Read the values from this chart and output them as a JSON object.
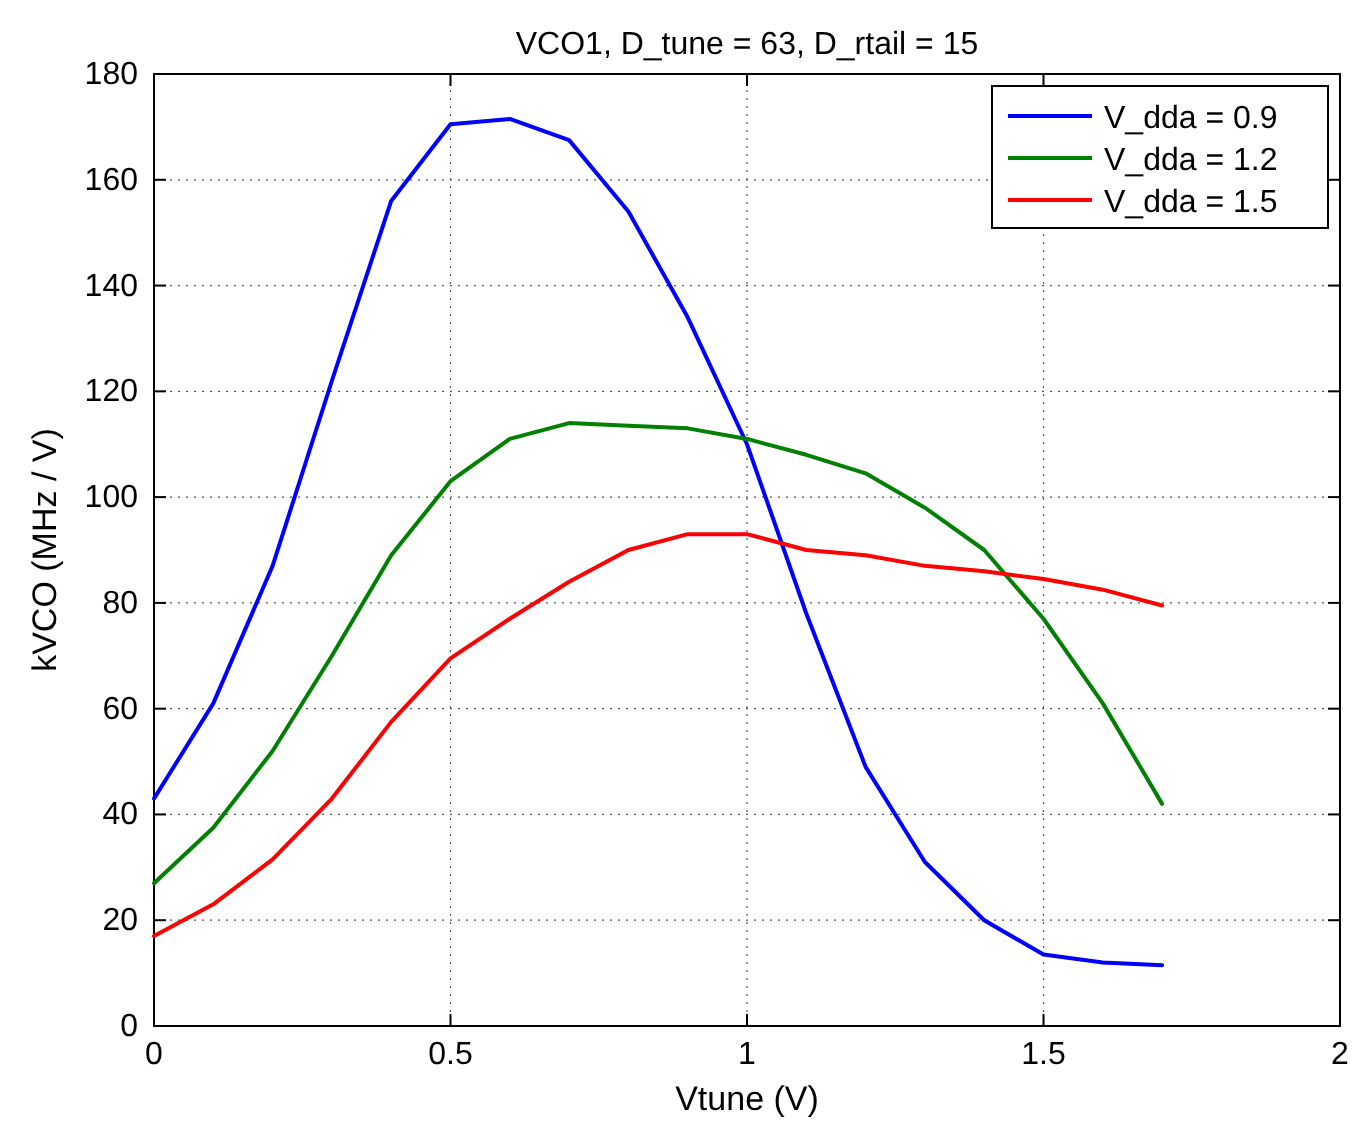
{
  "chart_data": {
    "type": "line",
    "title": "VCO1, D_tune = 63, D_rtail = 15",
    "xlabel": "Vtune (V)",
    "ylabel": "kVCO (MHz / V)",
    "x": [
      0,
      0.1,
      0.2,
      0.3,
      0.4,
      0.5,
      0.6,
      0.7,
      0.8,
      0.9,
      1.0,
      1.1,
      1.2,
      1.3,
      1.4,
      1.5,
      1.6,
      1.7
    ],
    "series": [
      {
        "name": "V_dda = 0.9",
        "color": "#0000ff",
        "values": [
          43,
          61,
          87,
          122,
          156,
          170.5,
          171.5,
          167.5,
          154,
          134,
          110,
          78,
          49,
          31,
          20,
          13.5,
          12,
          11.5
        ]
      },
      {
        "name": "V_dda = 1.2",
        "color": "#008000",
        "values": [
          27,
          37.5,
          52,
          70,
          89,
          103,
          111,
          114,
          113.5,
          113,
          111,
          108,
          104.5,
          98,
          90,
          77,
          61,
          42
        ]
      },
      {
        "name": "V_dda = 1.5",
        "color": "#ff0000",
        "values": [
          17,
          23,
          31.5,
          43,
          57.5,
          69.5,
          77,
          84,
          90,
          93,
          93,
          90,
          89,
          87,
          86,
          84.5,
          82.5,
          79.5
        ]
      }
    ],
    "xlim": [
      0,
      2
    ],
    "xticks": [
      0,
      0.5,
      1,
      1.5,
      2
    ],
    "ylim": [
      0,
      180
    ],
    "yticks": [
      0,
      20,
      40,
      60,
      80,
      100,
      120,
      140,
      160,
      180
    ],
    "grid": true,
    "legend": "top right",
    "marker": "none",
    "line_style": "solid"
  }
}
